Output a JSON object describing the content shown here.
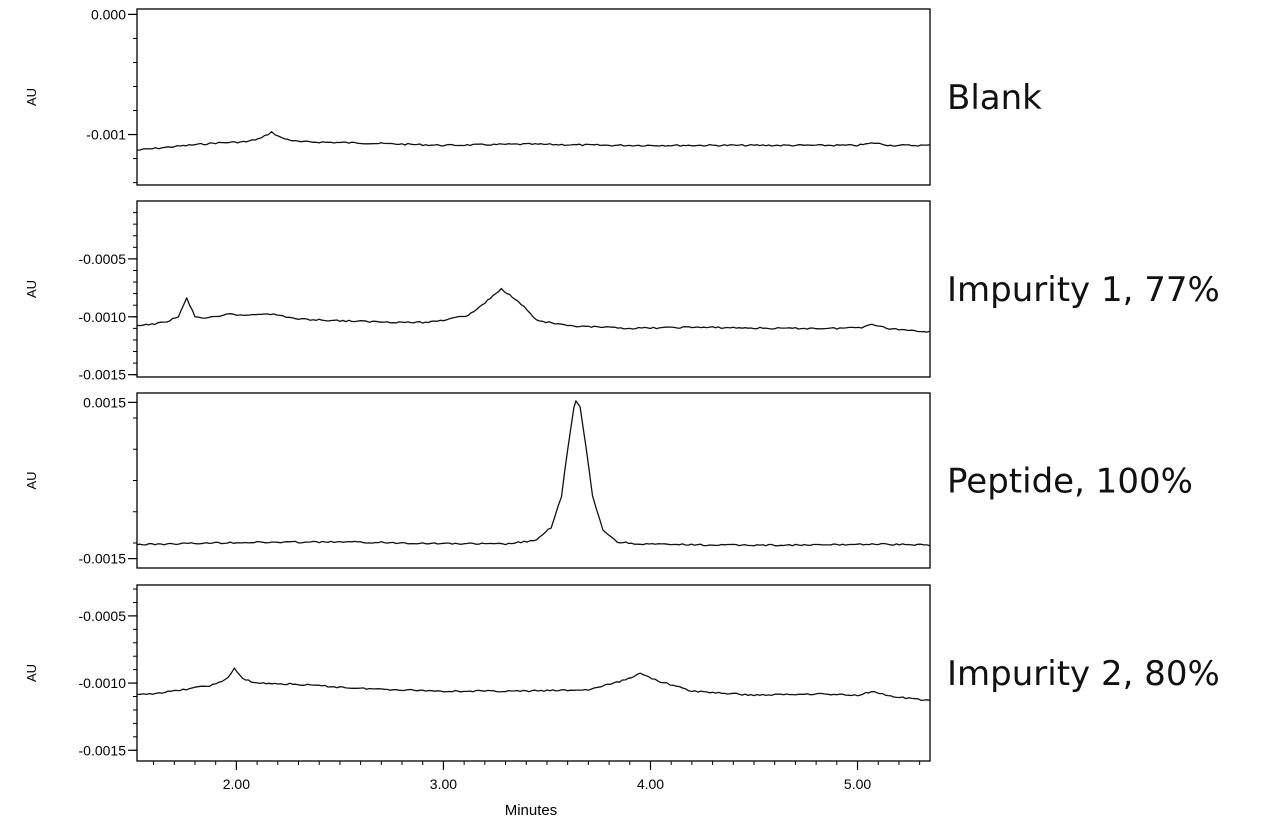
{
  "chart_data": {
    "type": "line",
    "xlabel": "Minutes",
    "x_ticks": [
      "2.00",
      "3.00",
      "4.00",
      "5.00"
    ],
    "xlim": [
      1.52,
      5.35
    ],
    "panels": [
      {
        "name": "Blank",
        "ylabel": "AU",
        "ylim": [
          -0.00142,
          4.5e-05
        ],
        "y_ticks": [
          "0.000",
          "-0.001"
        ],
        "y_tick_values": [
          0.0,
          -0.001
        ],
        "series": {
          "x": [
            1.52,
            1.7,
            1.9,
            2.05,
            2.12,
            2.17,
            2.22,
            2.3,
            2.6,
            3.0,
            3.4,
            3.8,
            4.2,
            4.6,
            4.9,
            5.0,
            5.08,
            5.16,
            5.35
          ],
          "y": [
            -0.00113,
            -0.0011,
            -0.00107,
            -0.00106,
            -0.00103,
            -0.00098,
            -0.00103,
            -0.00106,
            -0.00107,
            -0.00109,
            -0.00108,
            -0.00109,
            -0.00109,
            -0.00109,
            -0.00109,
            -0.00109,
            -0.00107,
            -0.00109,
            -0.00109
          ]
        }
      },
      {
        "name": "Impurity 1, 77%",
        "ylabel": "AU",
        "ylim": [
          -0.00152,
          0.0
        ],
        "y_ticks": [
          "-0.0005",
          "-0.0010",
          "-0.0015"
        ],
        "y_tick_values": [
          -0.0005,
          -0.001,
          -0.0015
        ],
        "series": {
          "x": [
            1.52,
            1.65,
            1.72,
            1.76,
            1.8,
            1.85,
            1.92,
            1.97,
            2.02,
            2.15,
            2.3,
            2.6,
            2.9,
            3.0,
            3.06,
            3.12,
            3.2,
            3.28,
            3.36,
            3.45,
            3.6,
            3.9,
            4.2,
            4.6,
            4.9,
            5.02,
            5.07,
            5.14,
            5.35
          ],
          "y": [
            -0.00108,
            -0.00105,
            -0.001,
            -0.00084,
            -0.001,
            -0.00101,
            -0.001,
            -0.00097,
            -0.00099,
            -0.00097,
            -0.00102,
            -0.00104,
            -0.00105,
            -0.00103,
            -0.001,
            -0.00099,
            -0.00088,
            -0.00076,
            -0.00086,
            -0.00103,
            -0.00108,
            -0.0011,
            -0.00109,
            -0.0011,
            -0.0011,
            -0.00109,
            -0.00106,
            -0.0011,
            -0.00113
          ]
        }
      },
      {
        "name": "Peptide, 100%",
        "ylabel": "AU",
        "ylim": [
          -0.00168,
          0.00168
        ],
        "y_ticks": [
          "0.0015",
          "-0.0015"
        ],
        "y_tick_values": [
          0.0015,
          -0.0015
        ],
        "series": {
          "x": [
            1.52,
            2.0,
            2.5,
            3.0,
            3.3,
            3.45,
            3.52,
            3.57,
            3.6,
            3.63,
            3.64,
            3.66,
            3.69,
            3.72,
            3.77,
            3.84,
            3.95,
            4.3,
            4.8,
            5.07,
            5.35
          ],
          "y": [
            -0.00123,
            -0.00119,
            -0.00118,
            -0.00121,
            -0.00122,
            -0.00115,
            -0.0009,
            -0.0003,
            0.0006,
            0.0014,
            0.00152,
            0.0014,
            0.0006,
            -0.0003,
            -0.00095,
            -0.00118,
            -0.00122,
            -0.00124,
            -0.00124,
            -0.00122,
            -0.00124
          ]
        }
      },
      {
        "name": "Impurity 2, 80%",
        "ylabel": "AU",
        "ylim": [
          -0.00158,
          -0.00027
        ],
        "y_ticks": [
          "-0.0005",
          "-0.0010",
          "-0.0015"
        ],
        "y_tick_values": [
          -0.0005,
          -0.001,
          -0.0015
        ],
        "series": {
          "x": [
            1.52,
            1.7,
            1.9,
            1.96,
            1.99,
            2.03,
            2.1,
            2.3,
            2.6,
            3.0,
            3.4,
            3.7,
            3.85,
            3.95,
            4.05,
            4.2,
            4.5,
            4.8,
            5.0,
            5.08,
            5.16,
            5.35
          ],
          "y": [
            -0.00109,
            -0.00106,
            -0.00101,
            -0.00096,
            -0.00089,
            -0.00097,
            -0.001,
            -0.00101,
            -0.00104,
            -0.00106,
            -0.00106,
            -0.00105,
            -0.00099,
            -0.00093,
            -0.00099,
            -0.00106,
            -0.00109,
            -0.00108,
            -0.00109,
            -0.00106,
            -0.0011,
            -0.00113
          ]
        }
      }
    ]
  }
}
